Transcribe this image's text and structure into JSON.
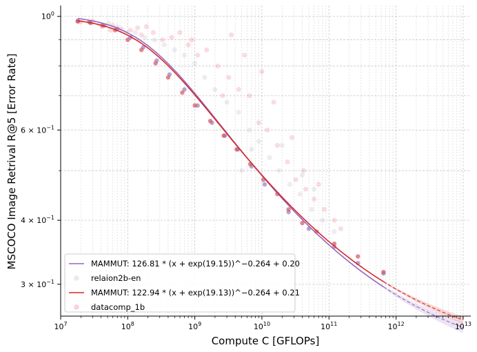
{
  "chart_data": {
    "type": "scatter",
    "title": "",
    "xlabel": "Compute C [GFLOPs]",
    "ylabel": "MSCOCO Image Retrival R@5 [Error Rate]",
    "xscale": "log",
    "yscale": "log",
    "xlim": [
      10000000,
      13000000000000
    ],
    "ylim": [
      0.26,
      1.05
    ],
    "grid": true,
    "legend_position": "lower-left",
    "x_ticks": [
      {
        "value": 10000000,
        "base": "10",
        "exp": "7"
      },
      {
        "value": 100000000,
        "base": "10",
        "exp": "8"
      },
      {
        "value": 1000000000,
        "base": "10",
        "exp": "9"
      },
      {
        "value": 10000000000,
        "base": "10",
        "exp": "10"
      },
      {
        "value": 100000000000,
        "base": "10",
        "exp": "11"
      },
      {
        "value": 1000000000000,
        "base": "10",
        "exp": "12"
      },
      {
        "value": 10000000000000,
        "base": "10",
        "exp": "13"
      }
    ],
    "y_ticks": [
      {
        "value": 1.0,
        "label": "10",
        "exp": "0"
      },
      {
        "value": 0.6,
        "label": "6 × 10",
        "exp": "−1"
      },
      {
        "value": 0.4,
        "label": "4 × 10",
        "exp": "−1"
      },
      {
        "value": 0.3,
        "label": "3 × 10",
        "exp": "−1"
      }
    ],
    "series": [
      {
        "name": "MAMMUT",
        "legend_label": "MAMMUT: 126.81 * (x + exp(19.15))^−0.264 + 0.20",
        "color": "#9467bd",
        "kind": "fit",
        "A": 126.81,
        "logB": 19.15,
        "alpha": 0.264,
        "E": 0.2,
        "fit_range": [
          18000000,
          650000000000
        ],
        "extrapolation_range": [
          650000000000,
          10000000000000
        ],
        "band": 0.006
      },
      {
        "name": "relaion2b-en",
        "legend_label": "relaion2b-en",
        "color": "#d0d0d0",
        "kind": "scatter_faint",
        "points": [
          [
            18000000,
            0.975
          ],
          [
            26000000,
            0.975
          ],
          [
            38000000,
            0.965
          ],
          [
            52000000,
            0.97
          ],
          [
            70000000,
            0.955
          ],
          [
            95000000,
            0.93
          ],
          [
            130000000,
            0.93
          ],
          [
            180000000,
            0.91
          ],
          [
            250000000,
            0.9
          ],
          [
            350000000,
            0.88
          ],
          [
            500000000,
            0.86
          ],
          [
            700000000,
            0.84
          ],
          [
            1000000000,
            0.81
          ],
          [
            1400000000,
            0.76
          ],
          [
            2000000000,
            0.72
          ],
          [
            3000000000,
            0.68
          ],
          [
            4500000000,
            0.65
          ],
          [
            6500000000,
            0.6
          ],
          [
            9000000000,
            0.57
          ],
          [
            13000000000,
            0.53
          ],
          [
            18000000000,
            0.5
          ],
          [
            26000000000,
            0.47
          ],
          [
            37000000000,
            0.45
          ],
          [
            55000000000,
            0.42
          ],
          [
            80000000000,
            0.4
          ],
          [
            120000000000,
            0.38
          ],
          [
            5000000000,
            0.5
          ],
          [
            7000000000,
            0.55
          ],
          [
            20000000000,
            0.56
          ],
          [
            40000000000,
            0.49
          ],
          [
            60000000000,
            0.46
          ]
        ],
        "highlight_points": [
          [
            18000000,
            0.98
          ],
          [
            28000000,
            0.97
          ],
          [
            45000000,
            0.96
          ],
          [
            70000000,
            0.945
          ],
          [
            110000000,
            0.91
          ],
          [
            170000000,
            0.87
          ],
          [
            270000000,
            0.82
          ],
          [
            420000000,
            0.77
          ],
          [
            700000000,
            0.72
          ],
          [
            1100000000,
            0.67
          ],
          [
            1800000000,
            0.62
          ],
          [
            2800000000,
            0.585
          ],
          [
            4400000000,
            0.55
          ],
          [
            7000000000,
            0.51
          ],
          [
            11000000000,
            0.47
          ],
          [
            25000000000,
            0.415
          ],
          [
            50000000000,
            0.385
          ],
          [
            120000000000,
            0.355
          ],
          [
            270000000000,
            0.33
          ],
          [
            650000000000,
            0.315
          ]
        ]
      },
      {
        "name": "MAMMUT",
        "legend_label": "MAMMUT: 122.94 * (x + exp(19.13))^−0.264 + 0.21",
        "color": "#d62728",
        "kind": "fit",
        "A": 122.94,
        "logB": 19.13,
        "alpha": 0.264,
        "E": 0.21,
        "fit_range": [
          18000000,
          650000000000
        ],
        "extrapolation_range": [
          650000000000,
          10000000000000
        ],
        "band": 0.004
      },
      {
        "name": "datacomp_1b",
        "legend_label": "datacomp_1b",
        "color": "#f4a6ad",
        "kind": "scatter_faint",
        "points": [
          [
            20000000,
            0.975
          ],
          [
            30000000,
            0.98
          ],
          [
            42000000,
            0.955
          ],
          [
            60000000,
            0.96
          ],
          [
            80000000,
            0.945
          ],
          [
            110000000,
            0.94
          ],
          [
            140000000,
            0.95
          ],
          [
            190000000,
            0.955
          ],
          [
            240000000,
            0.93
          ],
          [
            330000000,
            0.9
          ],
          [
            450000000,
            0.91
          ],
          [
            600000000,
            0.93
          ],
          [
            800000000,
            0.88
          ],
          [
            1100000000,
            0.84
          ],
          [
            1500000000,
            0.86
          ],
          [
            2200000000,
            0.8
          ],
          [
            3200000000,
            0.76
          ],
          [
            4500000000,
            0.72
          ],
          [
            6500000000,
            0.7
          ],
          [
            9000000000,
            0.62
          ],
          [
            12000000000,
            0.6
          ],
          [
            17000000000,
            0.56
          ],
          [
            24000000000,
            0.52
          ],
          [
            32000000000,
            0.48
          ],
          [
            45000000000,
            0.46
          ],
          [
            60000000000,
            0.44
          ],
          [
            85000000000,
            0.42
          ],
          [
            120000000000,
            0.4
          ],
          [
            150000000000,
            0.385
          ],
          [
            3500000000,
            0.92
          ],
          [
            5500000000,
            0.84
          ],
          [
            10000000000,
            0.78
          ],
          [
            15000000000,
            0.68
          ],
          [
            28000000000,
            0.58
          ],
          [
            42000000000,
            0.5
          ],
          [
            70000000000,
            0.47
          ],
          [
            2600000000,
            0.7
          ],
          [
            900000000,
            0.9
          ],
          [
            160000000,
            0.92
          ],
          [
            55000000,
            0.94
          ]
        ],
        "highlight_points": [
          [
            18000000,
            0.978
          ],
          [
            27000000,
            0.975
          ],
          [
            42000000,
            0.96
          ],
          [
            65000000,
            0.94
          ],
          [
            100000000,
            0.9
          ],
          [
            160000000,
            0.86
          ],
          [
            260000000,
            0.81
          ],
          [
            400000000,
            0.76
          ],
          [
            650000000,
            0.71
          ],
          [
            1000000000,
            0.67
          ],
          [
            1700000000,
            0.625
          ],
          [
            2700000000,
            0.585
          ],
          [
            4200000000,
            0.55
          ],
          [
            6700000000,
            0.515
          ],
          [
            10500000000,
            0.48
          ],
          [
            17000000000,
            0.45
          ],
          [
            25000000000,
            0.42
          ],
          [
            40000000000,
            0.395
          ],
          [
            65000000000,
            0.38
          ],
          [
            120000000000,
            0.36
          ],
          [
            270000000000,
            0.34
          ],
          [
            650000000000,
            0.317
          ]
        ]
      }
    ]
  }
}
